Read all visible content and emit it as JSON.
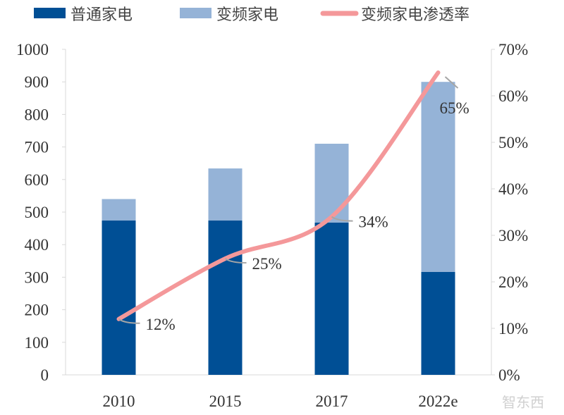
{
  "chart_data": {
    "type": "bar",
    "stacked": true,
    "categories": [
      "2010",
      "2015",
      "2017",
      "2022e"
    ],
    "series": [
      {
        "name": "普通家电",
        "type": "bar",
        "axis": "left",
        "color": "#004f95",
        "values": [
          474,
          474,
          468,
          316
        ]
      },
      {
        "name": "变频家电",
        "type": "bar",
        "axis": "left",
        "color": "#95b3d7",
        "values": [
          66,
          160,
          242,
          584
        ]
      },
      {
        "name": "变频家电渗透率",
        "type": "line",
        "axis": "right",
        "color": "#f4989a",
        "values": [
          12,
          25,
          34,
          65
        ],
        "labels": [
          "12%",
          "25%",
          "34%",
          "65%"
        ]
      }
    ],
    "ylim": [
      0,
      1000
    ],
    "yticks": [
      "0",
      "100",
      "200",
      "300",
      "400",
      "500",
      "600",
      "700",
      "800",
      "900",
      "1000"
    ],
    "y2lim": [
      0,
      70
    ],
    "y2ticks": [
      "0%",
      "10%",
      "20%",
      "30%",
      "40%",
      "50%",
      "60%",
      "70%"
    ],
    "legend": "top",
    "grid": false
  },
  "watermark": "智东西"
}
